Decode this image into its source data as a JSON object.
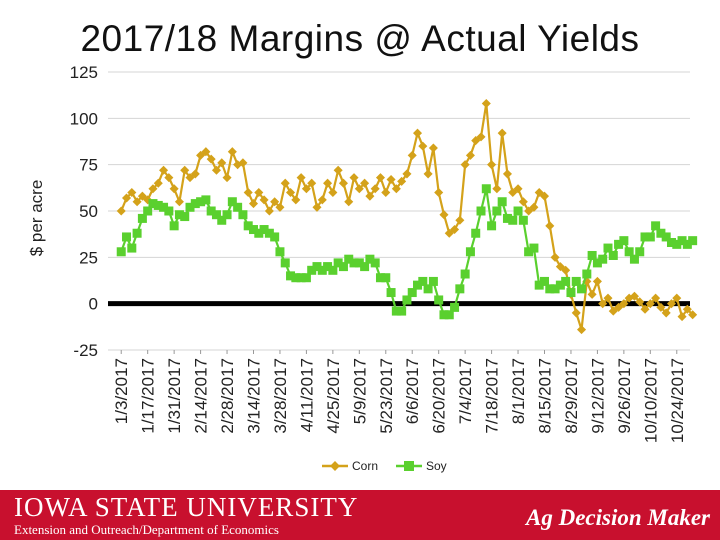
{
  "page": {
    "title": "2017/18 Margins @ Actual Yields"
  },
  "footer": {
    "university": "IOWA STATE UNIVERSITY",
    "department": "Extension and Outreach/Department of Economics",
    "brand": "Ag Decision Maker",
    "background_color": "#c8102e"
  },
  "chart_data": {
    "type": "line",
    "title": "2017/18 Margins @ Actual Yields",
    "ylabel": "$ per acre",
    "xlabel": "",
    "ylim": [
      -25,
      125
    ],
    "yticks": [
      -25,
      0,
      25,
      50,
      75,
      100,
      125
    ],
    "grid": "horizontal",
    "zero_line": true,
    "legend_position": "bottom",
    "x_tick_labels": [
      "1/3/2017",
      "1/17/2017",
      "1/31/2017",
      "2/14/2017",
      "2/28/2017",
      "3/14/2017",
      "3/28/2017",
      "4/11/2017",
      "4/25/2017",
      "5/9/2017",
      "5/23/2017",
      "6/6/2017",
      "6/20/2017",
      "7/4/2017",
      "7/18/2017",
      "8/1/2017",
      "8/15/2017",
      "8/29/2017",
      "9/12/2017",
      "9/26/2017",
      "10/10/2017",
      "10/24/2017"
    ],
    "series": [
      {
        "name": "Corn",
        "color": "#d4a21a",
        "values": [
          [
            0,
            50
          ],
          [
            0.2,
            57
          ],
          [
            0.4,
            60
          ],
          [
            0.6,
            55
          ],
          [
            0.8,
            58
          ],
          [
            1.0,
            56
          ],
          [
            1.2,
            62
          ],
          [
            1.4,
            65
          ],
          [
            1.6,
            72
          ],
          [
            1.8,
            68
          ],
          [
            2.0,
            62
          ],
          [
            2.2,
            55
          ],
          [
            2.4,
            72
          ],
          [
            2.6,
            68
          ],
          [
            2.8,
            70
          ],
          [
            3.0,
            80
          ],
          [
            3.2,
            82
          ],
          [
            3.4,
            78
          ],
          [
            3.6,
            72
          ],
          [
            3.8,
            76
          ],
          [
            4.0,
            68
          ],
          [
            4.2,
            82
          ],
          [
            4.4,
            75
          ],
          [
            4.6,
            76
          ],
          [
            4.8,
            60
          ],
          [
            5.0,
            54
          ],
          [
            5.2,
            60
          ],
          [
            5.4,
            56
          ],
          [
            5.6,
            50
          ],
          [
            5.8,
            55
          ],
          [
            6.0,
            52
          ],
          [
            6.2,
            65
          ],
          [
            6.4,
            60
          ],
          [
            6.6,
            56
          ],
          [
            6.8,
            68
          ],
          [
            7.0,
            62
          ],
          [
            7.2,
            65
          ],
          [
            7.4,
            52
          ],
          [
            7.6,
            56
          ],
          [
            7.8,
            65
          ],
          [
            8.0,
            60
          ],
          [
            8.2,
            72
          ],
          [
            8.4,
            65
          ],
          [
            8.6,
            55
          ],
          [
            8.8,
            68
          ],
          [
            9.0,
            62
          ],
          [
            9.2,
            65
          ],
          [
            9.4,
            58
          ],
          [
            9.6,
            62
          ],
          [
            9.8,
            68
          ],
          [
            10.0,
            60
          ],
          [
            10.2,
            67
          ],
          [
            10.4,
            62
          ],
          [
            10.6,
            66
          ],
          [
            10.8,
            70
          ],
          [
            11.0,
            80
          ],
          [
            11.2,
            92
          ],
          [
            11.4,
            85
          ],
          [
            11.6,
            70
          ],
          [
            11.8,
            84
          ],
          [
            12.0,
            60
          ],
          [
            12.2,
            48
          ],
          [
            12.4,
            38
          ],
          [
            12.6,
            40
          ],
          [
            12.8,
            45
          ],
          [
            13.0,
            75
          ],
          [
            13.2,
            80
          ],
          [
            13.4,
            88
          ],
          [
            13.6,
            90
          ],
          [
            13.8,
            108
          ],
          [
            14.0,
            75
          ],
          [
            14.2,
            62
          ],
          [
            14.4,
            92
          ],
          [
            14.6,
            70
          ],
          [
            14.8,
            60
          ],
          [
            15.0,
            62
          ],
          [
            15.2,
            55
          ],
          [
            15.4,
            50
          ],
          [
            15.6,
            52
          ],
          [
            15.8,
            60
          ],
          [
            16.0,
            58
          ],
          [
            16.2,
            42
          ],
          [
            16.4,
            25
          ],
          [
            16.6,
            20
          ],
          [
            16.8,
            18
          ],
          [
            17.0,
            5
          ],
          [
            17.2,
            -5
          ],
          [
            17.4,
            -14
          ],
          [
            17.6,
            12
          ],
          [
            17.8,
            5
          ],
          [
            18.0,
            12
          ],
          [
            18.2,
            0
          ],
          [
            18.4,
            3
          ],
          [
            18.6,
            -4
          ],
          [
            18.8,
            -2
          ],
          [
            19.0,
            0
          ],
          [
            19.2,
            3
          ],
          [
            19.4,
            4
          ],
          [
            19.6,
            1
          ],
          [
            19.8,
            -3
          ],
          [
            20.0,
            0
          ],
          [
            20.2,
            3
          ],
          [
            20.4,
            -2
          ],
          [
            20.6,
            -5
          ],
          [
            20.8,
            0
          ],
          [
            21.0,
            3
          ],
          [
            21.2,
            -7
          ],
          [
            21.4,
            -3
          ],
          [
            21.6,
            -6
          ]
        ]
      },
      {
        "name": "Soy",
        "color": "#5ad02e",
        "values": [
          [
            0,
            28
          ],
          [
            0.2,
            36
          ],
          [
            0.4,
            30
          ],
          [
            0.6,
            38
          ],
          [
            0.8,
            46
          ],
          [
            1.0,
            50
          ],
          [
            1.2,
            54
          ],
          [
            1.4,
            53
          ],
          [
            1.6,
            52
          ],
          [
            1.8,
            50
          ],
          [
            2.0,
            42
          ],
          [
            2.2,
            48
          ],
          [
            2.4,
            47
          ],
          [
            2.6,
            52
          ],
          [
            2.8,
            54
          ],
          [
            3.0,
            55
          ],
          [
            3.2,
            56
          ],
          [
            3.4,
            50
          ],
          [
            3.6,
            48
          ],
          [
            3.8,
            45
          ],
          [
            4.0,
            48
          ],
          [
            4.2,
            55
          ],
          [
            4.4,
            52
          ],
          [
            4.6,
            48
          ],
          [
            4.8,
            42
          ],
          [
            5.0,
            40
          ],
          [
            5.2,
            38
          ],
          [
            5.4,
            40
          ],
          [
            5.6,
            38
          ],
          [
            5.8,
            36
          ],
          [
            6.0,
            28
          ],
          [
            6.2,
            22
          ],
          [
            6.4,
            15
          ],
          [
            6.6,
            14
          ],
          [
            6.8,
            14
          ],
          [
            7.0,
            14
          ],
          [
            7.2,
            18
          ],
          [
            7.4,
            20
          ],
          [
            7.6,
            18
          ],
          [
            7.8,
            20
          ],
          [
            8.0,
            18
          ],
          [
            8.2,
            22
          ],
          [
            8.4,
            20
          ],
          [
            8.6,
            24
          ],
          [
            8.8,
            22
          ],
          [
            9.0,
            22
          ],
          [
            9.2,
            20
          ],
          [
            9.4,
            24
          ],
          [
            9.6,
            22
          ],
          [
            9.8,
            14
          ],
          [
            10.0,
            14
          ],
          [
            10.2,
            6
          ],
          [
            10.4,
            -4
          ],
          [
            10.6,
            -4
          ],
          [
            10.8,
            2
          ],
          [
            11.0,
            6
          ],
          [
            11.2,
            10
          ],
          [
            11.4,
            12
          ],
          [
            11.6,
            8
          ],
          [
            11.8,
            12
          ],
          [
            12.0,
            2
          ],
          [
            12.2,
            -6
          ],
          [
            12.4,
            -6
          ],
          [
            12.6,
            -2
          ],
          [
            12.8,
            8
          ],
          [
            13.0,
            16
          ],
          [
            13.2,
            28
          ],
          [
            13.4,
            38
          ],
          [
            13.6,
            50
          ],
          [
            13.8,
            62
          ],
          [
            14.0,
            42
          ],
          [
            14.2,
            50
          ],
          [
            14.4,
            55
          ],
          [
            14.6,
            46
          ],
          [
            14.8,
            45
          ],
          [
            15.0,
            50
          ],
          [
            15.2,
            45
          ],
          [
            15.4,
            28
          ],
          [
            15.6,
            30
          ],
          [
            15.8,
            10
          ],
          [
            16.0,
            12
          ],
          [
            16.2,
            8
          ],
          [
            16.4,
            8
          ],
          [
            16.6,
            10
          ],
          [
            16.8,
            12
          ],
          [
            17.0,
            6
          ],
          [
            17.2,
            12
          ],
          [
            17.4,
            8
          ],
          [
            17.6,
            16
          ],
          [
            17.8,
            26
          ],
          [
            18.0,
            22
          ],
          [
            18.2,
            24
          ],
          [
            18.4,
            30
          ],
          [
            18.6,
            26
          ],
          [
            18.8,
            32
          ],
          [
            19.0,
            34
          ],
          [
            19.2,
            28
          ],
          [
            19.4,
            24
          ],
          [
            19.6,
            28
          ],
          [
            19.8,
            36
          ],
          [
            20.0,
            36
          ],
          [
            20.2,
            42
          ],
          [
            20.4,
            38
          ],
          [
            20.6,
            36
          ],
          [
            20.8,
            33
          ],
          [
            21.0,
            32
          ],
          [
            21.2,
            34
          ],
          [
            21.4,
            32
          ],
          [
            21.6,
            34
          ]
        ]
      }
    ]
  }
}
